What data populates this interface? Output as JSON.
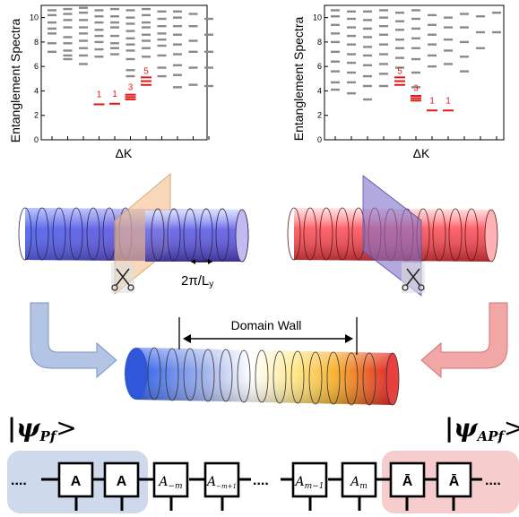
{
  "chart_data": [
    {
      "type": "scatter",
      "panel": "left",
      "ylabel": "Entanglement Spectra",
      "xlabel": "ΔK",
      "ylim": [
        0,
        11
      ],
      "yticks": [
        "0",
        "2",
        "4",
        "6",
        "8",
        "10"
      ],
      "low_levels": [
        {
          "col": 4,
          "value": 2.9,
          "degeneracy": "1"
        },
        {
          "col": 5,
          "value": 2.95,
          "degeneracy": "1"
        },
        {
          "col": 6,
          "value": 3.5,
          "degeneracy": "3"
        },
        {
          "col": 7,
          "value": 4.8,
          "degeneracy": "5"
        }
      ],
      "grey_columns": [
        {
          "col": 1,
          "values": [
            7.2,
            7.9,
            8.7,
            9.1,
            9.6,
            10.2,
            10.6
          ]
        },
        {
          "col": 2,
          "values": [
            6.6,
            6.9,
            7.3,
            7.9,
            8.4,
            9.2,
            9.8,
            10.3,
            10.7
          ]
        },
        {
          "col": 3,
          "values": [
            6.2,
            6.9,
            7.5,
            8.1,
            8.7,
            9.2,
            9.8,
            10.4,
            10.8
          ]
        },
        {
          "col": 4,
          "values": [
            6.8,
            7.4,
            8.0,
            8.5,
            9.0,
            9.6,
            10.1,
            10.6
          ]
        },
        {
          "col": 5,
          "values": [
            7.0,
            7.5,
            7.9,
            8.5,
            9.2,
            9.6,
            10.1,
            10.7
          ]
        },
        {
          "col": 6,
          "values": [
            5.2,
            5.7,
            6.6,
            7.3,
            7.8,
            8.3,
            8.9,
            9.5,
            10.0,
            10.6
          ]
        },
        {
          "col": 7,
          "values": [
            6.8,
            7.5,
            8.1,
            8.6,
            9.2,
            9.6,
            10.2,
            10.7
          ]
        },
        {
          "col": 8,
          "values": [
            5.2,
            5.9,
            6.9,
            7.7,
            8.2,
            8.7,
            9.3,
            9.9,
            10.5
          ]
        },
        {
          "col": 9,
          "values": [
            4.3,
            5.3,
            6.1,
            7.0,
            7.8,
            8.6,
            9.3,
            10.0,
            10.5
          ]
        },
        {
          "col": 10,
          "values": [
            4.5,
            5.9,
            7.2,
            8.1,
            9.3,
            10.3
          ]
        },
        {
          "col": 11,
          "values": [
            4.4,
            5.9,
            7.2,
            8.6,
            9.9
          ]
        }
      ]
    },
    {
      "type": "scatter",
      "panel": "right",
      "ylabel": "Entanglement Spectra",
      "xlabel": "ΔK",
      "ylim": [
        0,
        11
      ],
      "yticks": [
        "0",
        "2",
        "4",
        "6",
        "8",
        "10"
      ],
      "low_levels": [
        {
          "col": 5,
          "value": 4.8,
          "degeneracy": "5"
        },
        {
          "col": 6,
          "value": 3.4,
          "degeneracy": "3"
        },
        {
          "col": 7,
          "value": 2.4,
          "degeneracy": "1"
        },
        {
          "col": 8,
          "value": 2.4,
          "degeneracy": "1"
        }
      ],
      "grey_columns": [
        {
          "col": 1,
          "values": [
            4.1,
            4.7,
            5.6,
            6.4,
            7.2,
            8.0,
            8.7,
            9.4,
            10.1,
            10.6
          ]
        },
        {
          "col": 2,
          "values": [
            3.8,
            4.7,
            5.5,
            6.3,
            7.0,
            7.8,
            8.5,
            9.2,
            9.9,
            10.5
          ]
        },
        {
          "col": 3,
          "values": [
            3.3,
            4.4,
            5.2,
            6.1,
            6.9,
            7.6,
            8.4,
            9.1,
            9.8,
            10.5
          ]
        },
        {
          "col": 4,
          "values": [
            4.4,
            5.4,
            6.2,
            7.0,
            7.8,
            8.6,
            9.3,
            10.0,
            10.6
          ]
        },
        {
          "col": 5,
          "values": [
            5.9,
            6.7,
            7.5,
            8.2,
            9.0,
            9.7,
            10.4
          ]
        },
        {
          "col": 6,
          "values": [
            4.3,
            5.5,
            6.6,
            7.5,
            8.3,
            9.1,
            9.9,
            10.6
          ]
        },
        {
          "col": 7,
          "values": [
            6.0,
            6.9,
            7.8,
            8.6,
            9.4,
            10.2
          ]
        },
        {
          "col": 8,
          "values": [
            6.2,
            7.3,
            8.2,
            9.2,
            10.0
          ]
        },
        {
          "col": 9,
          "values": [
            5.6,
            6.8,
            8.0,
            9.2,
            10.3
          ]
        },
        {
          "col": 10,
          "values": [
            7.5,
            8.8,
            10.1
          ]
        },
        {
          "col": 11,
          "values": [
            8.8,
            10.4
          ]
        }
      ]
    }
  ],
  "middle": {
    "spacing_label": "2π/L",
    "spacing_sub": "y",
    "domain_wall_label": "Domain Wall"
  },
  "bottom": {
    "psi_left_main": "|ψ",
    "psi_left_sub": "Pf",
    "psi_left_close": ">",
    "psi_right_main": "|ψ",
    "psi_right_sub": "APf",
    "psi_right_close": ">",
    "dots": "....",
    "chain": [
      {
        "main": "A",
        "sub": "",
        "style": "bold"
      },
      {
        "main": "A",
        "sub": "",
        "style": "bold"
      },
      {
        "main": "A",
        "sub": "−m",
        "style": "italic"
      },
      {
        "main": "A",
        "sub": "−m+1",
        "style": "italic"
      },
      {
        "main": "A",
        "sub": "m−1",
        "style": "italic"
      },
      {
        "main": "A",
        "sub": "m",
        "style": "italic"
      },
      {
        "main": "Ā",
        "sub": "",
        "style": "bold"
      },
      {
        "main": "Ā",
        "sub": "",
        "style": "bold"
      }
    ]
  },
  "colors": {
    "grey_level": "#8a8a8a",
    "red_level": "#e01818",
    "left_box": "#cfd9ec",
    "right_box": "#f6cccc",
    "left_arrow": "#b4c4e4",
    "right_arrow": "#f2a7a7",
    "plane_left": "#f3c08c",
    "plane_right": "#7e72c9"
  }
}
